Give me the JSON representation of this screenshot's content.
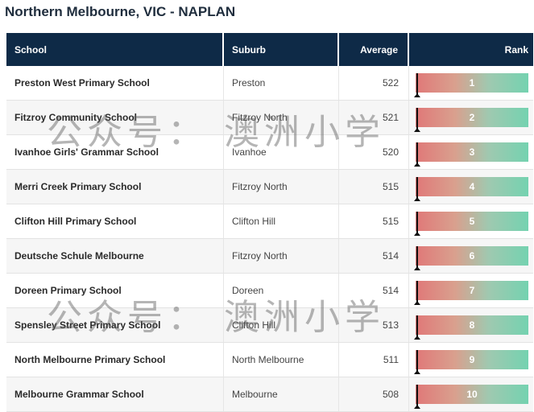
{
  "page": {
    "title": "Northern Melbourne, VIC - NAPLAN"
  },
  "table": {
    "headers": {
      "school": "School",
      "suburb": "Suburb",
      "average": "Average",
      "rank": "Rank"
    },
    "rows": [
      {
        "school": "Preston West Primary School",
        "suburb": "Preston",
        "average": "522",
        "rank": "1"
      },
      {
        "school": "Fitzroy Community School",
        "suburb": "Fitzroy North",
        "average": "521",
        "rank": "2"
      },
      {
        "school": "Ivanhoe Girls' Grammar School",
        "suburb": "Ivanhoe",
        "average": "520",
        "rank": "3"
      },
      {
        "school": "Merri Creek Primary School",
        "suburb": "Fitzroy North",
        "average": "515",
        "rank": "4"
      },
      {
        "school": "Clifton Hill Primary School",
        "suburb": "Clifton Hill",
        "average": "515",
        "rank": "5"
      },
      {
        "school": "Deutsche Schule Melbourne",
        "suburb": "Fitzroy North",
        "average": "514",
        "rank": "6"
      },
      {
        "school": "Doreen Primary School",
        "suburb": "Doreen",
        "average": "514",
        "rank": "7"
      },
      {
        "school": "Spensley Street Primary School",
        "suburb": "Clifton Hill",
        "average": "513",
        "rank": "8"
      },
      {
        "school": "North Melbourne Primary School",
        "suburb": "North Melbourne",
        "average": "511",
        "rank": "9"
      },
      {
        "school": "Melbourne Grammar School",
        "suburb": "Melbourne",
        "average": "508",
        "rank": "10"
      }
    ]
  },
  "watermark": {
    "text": "公众号： 澳洲小学"
  },
  "colors": {
    "header_bg": "#0e2a47",
    "bar_low": "#e07878",
    "bar_high": "#74d2b0"
  }
}
